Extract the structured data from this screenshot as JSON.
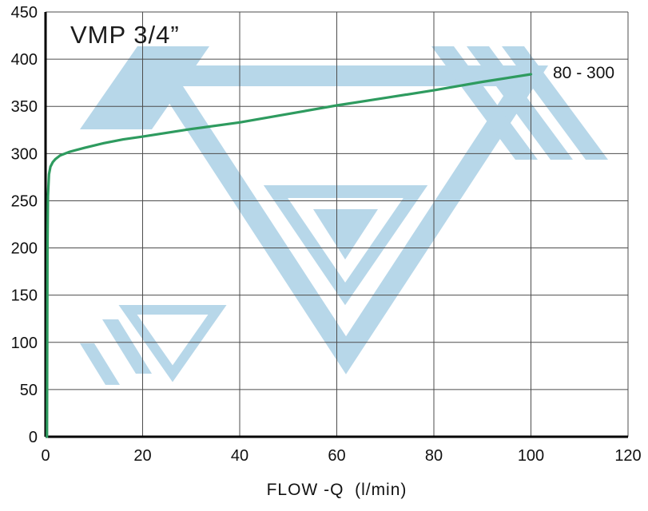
{
  "chart_data": {
    "type": "line",
    "title": "VMP 3/4”",
    "xlabel": "FLOW -Q  (l/min)",
    "ylabel": "",
    "xlim": [
      0,
      120
    ],
    "ylim": [
      0,
      450
    ],
    "xticks": [
      0,
      20,
      40,
      60,
      80,
      100,
      120
    ],
    "yticks": [
      0,
      50,
      100,
      150,
      200,
      250,
      300,
      350,
      400,
      450
    ],
    "grid": true,
    "legend_position": "annotation-top-right",
    "series": [
      {
        "name": "80 - 300",
        "color": "#2e9b5f",
        "x": [
          0.3,
          0.35,
          0.4,
          0.5,
          0.7,
          1,
          1.5,
          2,
          3,
          5,
          8,
          12,
          16,
          20,
          25,
          30,
          40,
          50,
          60,
          70,
          80,
          90,
          100
        ],
        "y": [
          0,
          100,
          200,
          255,
          278,
          286,
          291,
          294,
          298,
          302,
          306,
          311,
          315,
          318,
          322,
          326,
          333,
          342,
          351,
          359,
          367,
          376,
          384
        ]
      }
    ]
  },
  "colors": {
    "watermark": "#b7d7e9",
    "grid": "#4d4d4d",
    "axis": "#000000",
    "text": "#111111",
    "background": "#ffffff"
  }
}
